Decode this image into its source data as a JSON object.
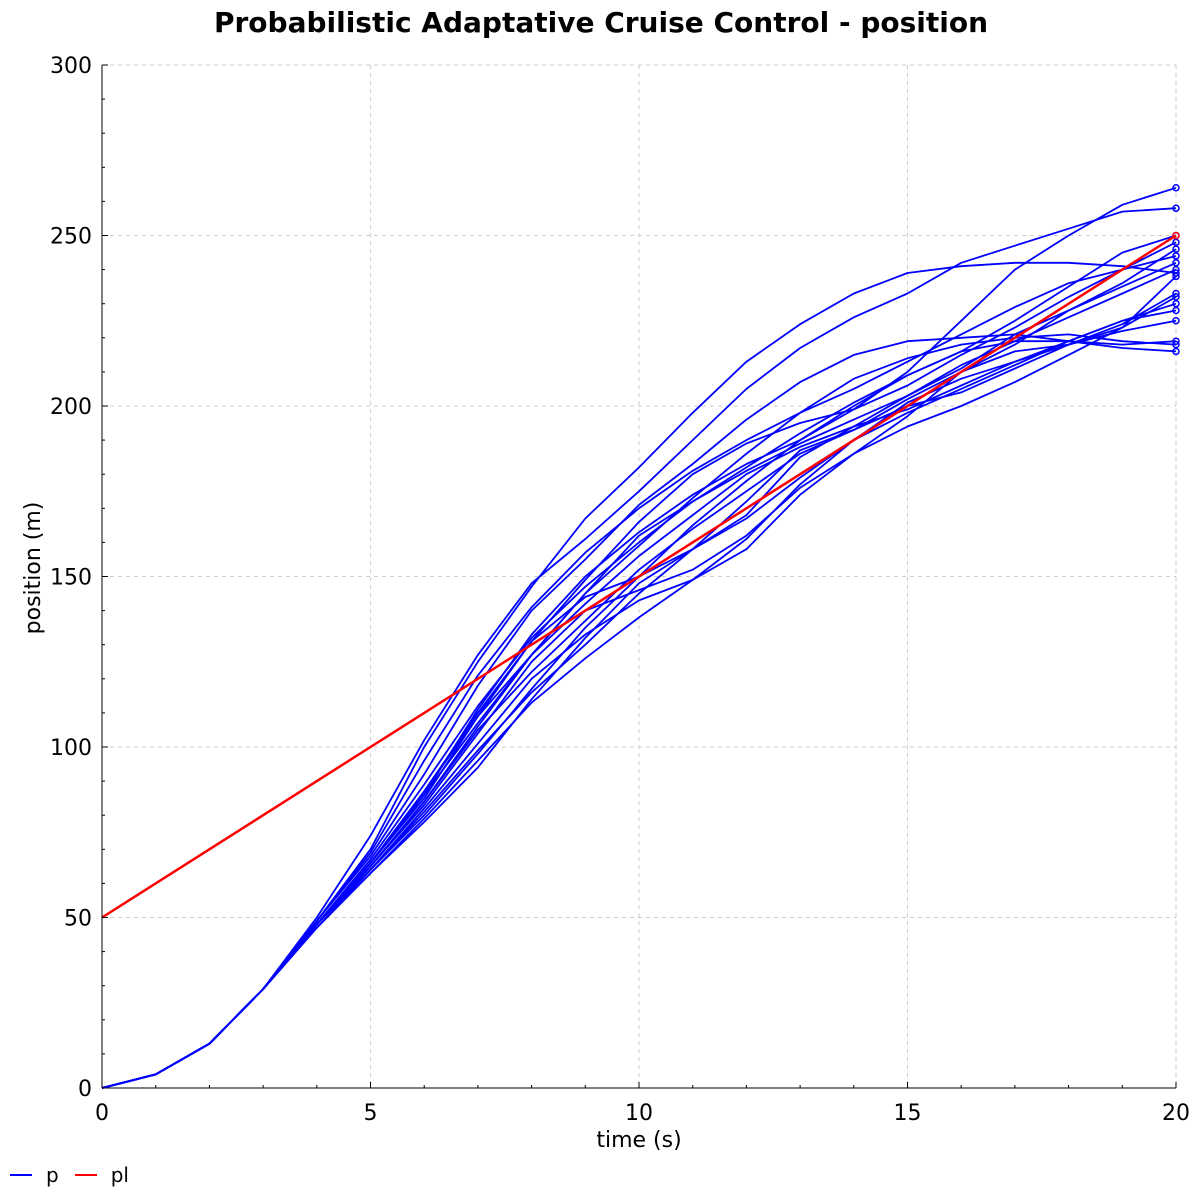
{
  "chart_data": {
    "type": "line",
    "title": "Probabilistic Adaptative Cruise Control - position",
    "xlabel": "time (s)",
    "ylabel": "position (m)",
    "xlim": [
      0,
      20
    ],
    "ylim": [
      0,
      300
    ],
    "xticks": [
      0,
      5,
      10,
      15,
      20
    ],
    "yticks": [
      0,
      50,
      100,
      150,
      200,
      250,
      300
    ],
    "grid": true,
    "legend_position": "bottom-left",
    "colors": {
      "p": "#0000ff",
      "pl": "#ff0000"
    },
    "series": [
      {
        "name": "p",
        "group": "p",
        "x": [
          0,
          1,
          2,
          3,
          4,
          5,
          6,
          7,
          8,
          9,
          10,
          11,
          12,
          13,
          14,
          15,
          16,
          17,
          18,
          19,
          20
        ],
        "y": [
          0,
          4,
          13,
          29,
          49,
          70,
          100,
          125,
          147,
          167,
          182,
          198,
          213,
          224,
          233,
          239,
          241,
          242,
          242,
          241,
          239
        ]
      },
      {
        "name": "p",
        "group": "p",
        "x": [
          0,
          1,
          2,
          3,
          4,
          5,
          6,
          7,
          8,
          9,
          10,
          11,
          12,
          13,
          14,
          15,
          16,
          17,
          18,
          19,
          20
        ],
        "y": [
          0,
          4,
          13,
          29,
          50,
          74,
          102,
          127,
          148,
          161,
          175,
          190,
          205,
          217,
          226,
          233,
          242,
          247,
          252,
          257,
          258
        ]
      },
      {
        "name": "p",
        "group": "p",
        "x": [
          0,
          1,
          2,
          3,
          4,
          5,
          6,
          7,
          8,
          9,
          10,
          11,
          12,
          13,
          14,
          15,
          16,
          17,
          18,
          19,
          20
        ],
        "y": [
          0,
          4,
          13,
          29,
          49,
          68,
          92,
          118,
          140,
          155,
          171,
          183,
          196,
          207,
          215,
          219,
          220,
          221,
          219,
          217,
          216
        ]
      },
      {
        "name": "p",
        "group": "p",
        "x": [
          0,
          1,
          2,
          3,
          4,
          5,
          6,
          7,
          8,
          9,
          10,
          11,
          12,
          13,
          14,
          15,
          16,
          17,
          18,
          19,
          20
        ],
        "y": [
          0,
          4,
          13,
          29,
          48,
          66,
          86,
          107,
          127,
          145,
          159,
          173,
          186,
          198,
          208,
          214,
          218,
          220,
          221,
          219,
          218
        ]
      },
      {
        "name": "p",
        "group": "p",
        "x": [
          0,
          1,
          2,
          3,
          4,
          5,
          6,
          7,
          8,
          9,
          10,
          11,
          12,
          13,
          14,
          15,
          16,
          17,
          18,
          19,
          20
        ],
        "y": [
          0,
          4,
          13,
          29,
          48,
          64,
          80,
          98,
          117,
          135,
          150,
          165,
          178,
          190,
          200,
          209,
          216,
          219,
          219,
          218,
          219
        ]
      },
      {
        "name": "p",
        "group": "p",
        "x": [
          0,
          1,
          2,
          3,
          4,
          5,
          6,
          7,
          8,
          9,
          10,
          11,
          12,
          13,
          14,
          15,
          16,
          17,
          18,
          19,
          20
        ],
        "y": [
          0,
          4,
          13,
          29,
          47,
          63,
          78,
          94,
          114,
          132,
          148,
          158,
          172,
          187,
          193,
          200,
          204,
          211,
          218,
          222,
          225
        ]
      },
      {
        "name": "p",
        "group": "p",
        "x": [
          0,
          1,
          2,
          3,
          4,
          5,
          6,
          7,
          8,
          9,
          10,
          11,
          12,
          13,
          14,
          15,
          16,
          17,
          18,
          19,
          20
        ],
        "y": [
          0,
          4,
          13,
          29,
          47,
          63,
          79,
          96,
          113,
          126,
          138,
          149,
          161,
          177,
          190,
          201,
          208,
          213,
          219,
          225,
          230
        ]
      },
      {
        "name": "p",
        "group": "p",
        "x": [
          0,
          1,
          2,
          3,
          4,
          5,
          6,
          7,
          8,
          9,
          10,
          11,
          12,
          13,
          14,
          15,
          16,
          17,
          18,
          19,
          20
        ],
        "y": [
          0,
          4,
          13,
          29,
          47,
          64,
          81,
          99,
          116,
          130,
          145,
          158,
          167,
          179,
          190,
          198,
          205,
          212,
          219,
          225,
          228
        ]
      },
      {
        "name": "p",
        "group": "p",
        "x": [
          0,
          1,
          2,
          3,
          4,
          5,
          6,
          7,
          8,
          9,
          10,
          11,
          12,
          13,
          14,
          15,
          16,
          17,
          18,
          19,
          20
        ],
        "y": [
          0,
          4,
          13,
          29,
          48,
          65,
          84,
          105,
          122,
          137,
          152,
          164,
          175,
          186,
          193,
          202,
          210,
          216,
          218,
          223,
          232
        ]
      },
      {
        "name": "p",
        "group": "p",
        "x": [
          0,
          1,
          2,
          3,
          4,
          5,
          6,
          7,
          8,
          9,
          10,
          11,
          12,
          13,
          14,
          15,
          16,
          17,
          18,
          19,
          20
        ],
        "y": [
          0,
          4,
          13,
          29,
          48,
          66,
          87,
          109,
          127,
          142,
          156,
          168,
          180,
          188,
          194,
          199,
          206,
          213,
          218,
          224,
          233
        ]
      },
      {
        "name": "p",
        "group": "p",
        "x": [
          0,
          1,
          2,
          3,
          4,
          5,
          6,
          7,
          8,
          9,
          10,
          11,
          12,
          13,
          14,
          15,
          16,
          17,
          18,
          19,
          20
        ],
        "y": [
          0,
          4,
          13,
          29,
          48,
          67,
          89,
          112,
          132,
          147,
          160,
          172,
          181,
          189,
          196,
          203,
          211,
          221,
          228,
          235,
          242
        ]
      },
      {
        "name": "p",
        "group": "p",
        "x": [
          0,
          1,
          2,
          3,
          4,
          5,
          6,
          7,
          8,
          9,
          10,
          11,
          12,
          13,
          14,
          15,
          16,
          17,
          18,
          19,
          20
        ],
        "y": [
          0,
          4,
          13,
          29,
          48,
          65,
          83,
          104,
          125,
          140,
          146,
          152,
          162,
          176,
          186,
          194,
          200,
          207,
          215,
          223,
          238
        ]
      },
      {
        "name": "p",
        "group": "p",
        "x": [
          0,
          1,
          2,
          3,
          4,
          5,
          6,
          7,
          8,
          9,
          10,
          11,
          12,
          13,
          14,
          15,
          16,
          17,
          18,
          19,
          20
        ],
        "y": [
          0,
          4,
          13,
          29,
          48,
          66,
          85,
          109,
          131,
          144,
          150,
          158,
          168,
          185,
          194,
          203,
          212,
          219,
          226,
          233,
          240
        ]
      },
      {
        "name": "p",
        "group": "p",
        "x": [
          0,
          1,
          2,
          3,
          4,
          5,
          6,
          7,
          8,
          9,
          10,
          11,
          12,
          13,
          14,
          15,
          16,
          17,
          18,
          19,
          20
        ],
        "y": [
          0,
          4,
          13,
          29,
          48,
          64,
          82,
          101,
          120,
          133,
          143,
          149,
          158,
          174,
          186,
          197,
          210,
          218,
          228,
          236,
          246
        ]
      },
      {
        "name": "p",
        "group": "p",
        "x": [
          0,
          1,
          2,
          3,
          4,
          5,
          6,
          7,
          8,
          9,
          10,
          11,
          12,
          13,
          14,
          15,
          16,
          17,
          18,
          19,
          20
        ],
        "y": [
          0,
          4,
          13,
          29,
          49,
          69,
          96,
          121,
          141,
          157,
          170,
          181,
          190,
          198,
          205,
          213,
          221,
          229,
          236,
          240,
          244
        ]
      },
      {
        "name": "p",
        "group": "p",
        "x": [
          0,
          1,
          2,
          3,
          4,
          5,
          6,
          7,
          8,
          9,
          10,
          11,
          12,
          13,
          14,
          15,
          16,
          17,
          18,
          19,
          20
        ],
        "y": [
          0,
          4,
          13,
          29,
          48,
          66,
          87,
          110,
          131,
          149,
          166,
          180,
          189,
          195,
          199,
          206,
          215,
          223,
          232,
          240,
          248
        ]
      },
      {
        "name": "p",
        "group": "p",
        "x": [
          0,
          1,
          2,
          3,
          4,
          5,
          6,
          7,
          8,
          9,
          10,
          11,
          12,
          13,
          14,
          15,
          16,
          17,
          18,
          19,
          20
        ],
        "y": [
          0,
          4,
          13,
          29,
          48,
          65,
          84,
          106,
          127,
          145,
          162,
          172,
          182,
          192,
          201,
          209,
          216,
          225,
          235,
          245,
          250
        ]
      },
      {
        "name": "p",
        "group": "p",
        "x": [
          0,
          1,
          2,
          3,
          4,
          5,
          6,
          7,
          8,
          9,
          10,
          11,
          12,
          13,
          14,
          15,
          16,
          17,
          18,
          19,
          20
        ],
        "y": [
          0,
          4,
          13,
          29,
          48,
          66,
          86,
          111,
          133,
          150,
          163,
          174,
          183,
          190,
          199,
          210,
          225,
          240,
          250,
          259,
          264
        ]
      },
      {
        "name": "pl",
        "group": "pl",
        "x": [
          0,
          20
        ],
        "y": [
          50,
          250
        ]
      }
    ]
  },
  "legend": [
    {
      "label": "p",
      "color": "#0000ff"
    },
    {
      "label": "pl",
      "color": "#ff0000"
    }
  ]
}
